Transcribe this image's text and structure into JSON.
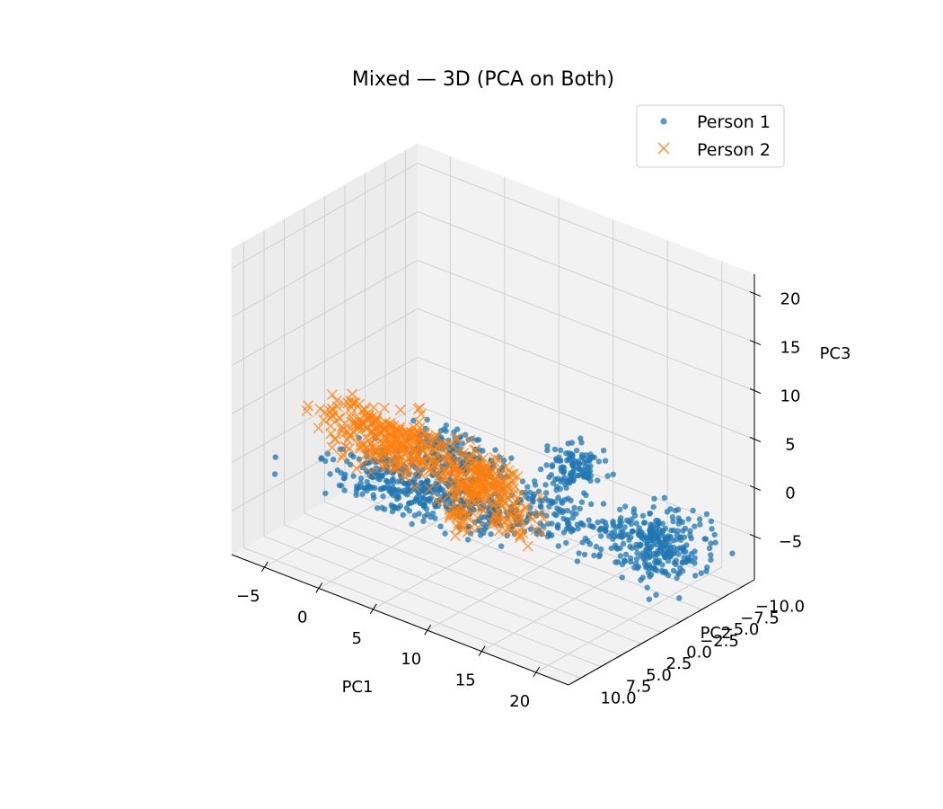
{
  "chart_data": {
    "type": "scatter",
    "projection": "3d",
    "title": "Mixed — 3D (PCA on Both)",
    "xlabel": "PC1",
    "ylabel": "PC2",
    "zlabel": "PC3",
    "xlim": [
      -8,
      23
    ],
    "ylim": [
      -11.5,
      11.5
    ],
    "zlim": [
      -9.5,
      22
    ],
    "xticks": [
      "−5",
      "0",
      "5",
      "10",
      "15",
      "20"
    ],
    "yticks": [
      "−10.0",
      "−7.5",
      "−5.0",
      "−2.5",
      "0.0",
      "2.5",
      "5.0",
      "7.5",
      "10.0"
    ],
    "zticks": [
      "−5",
      "0",
      "5",
      "10",
      "15",
      "20"
    ],
    "xtick_values": [
      -5,
      0,
      5,
      10,
      15,
      20
    ],
    "ytick_values": [
      -10,
      -7.5,
      -5,
      -2.5,
      0,
      2.5,
      5,
      7.5,
      10
    ],
    "ztick_values": [
      -5,
      0,
      5,
      10,
      15,
      20
    ],
    "grid": true,
    "legend_position": "top-right",
    "series": [
      {
        "name": "Person 1",
        "marker": "circle",
        "color": "#1f77b4",
        "clusters": [
          {
            "center": [
              0.0,
              0.0,
              -4.5
            ],
            "spread": [
              3.5,
              1.6,
              1.0
            ],
            "count": 340
          },
          {
            "center": [
              7.0,
              1.0,
              -3.5
            ],
            "spread": [
              2.2,
              1.0,
              0.8
            ],
            "count": 100
          },
          {
            "center": [
              6.5,
              3.0,
              3.0
            ],
            "spread": [
              2.0,
              1.0,
              1.0
            ],
            "count": 170
          },
          {
            "center": [
              15.5,
              0.5,
              4.5
            ],
            "spread": [
              1.0,
              0.8,
              1.2
            ],
            "count": 110
          },
          {
            "center": [
              12.0,
              -0.5,
              -2.5
            ],
            "spread": [
              2.0,
              1.2,
              1.5
            ],
            "count": 110
          },
          {
            "center": [
              20.0,
              -4.0,
              -4.0
            ],
            "spread": [
              1.6,
              1.8,
              1.5
            ],
            "count": 260
          },
          {
            "center": [
              16.5,
              -2.5,
              -3.0
            ],
            "spread": [
              1.3,
              1.5,
              1.4
            ],
            "count": 70
          }
        ]
      },
      {
        "name": "Person 2",
        "marker": "x",
        "color": "#ff7f0e",
        "clusters": [
          {
            "center": [
              0.5,
              2.5,
              1.5
            ],
            "spread": [
              3.2,
              1.0,
              1.3
            ],
            "count": 320
          },
          {
            "center": [
              9.5,
              3.5,
              1.5
            ],
            "spread": [
              1.6,
              0.8,
              1.3
            ],
            "count": 170
          },
          {
            "center": [
              10.0,
              0.5,
              -3.5
            ],
            "spread": [
              1.0,
              0.6,
              1.0
            ],
            "count": 40
          },
          {
            "center": [
              4.5,
              0.0,
              -5.5
            ],
            "spread": [
              0.8,
              0.5,
              0.8
            ],
            "count": 35
          }
        ]
      }
    ]
  }
}
